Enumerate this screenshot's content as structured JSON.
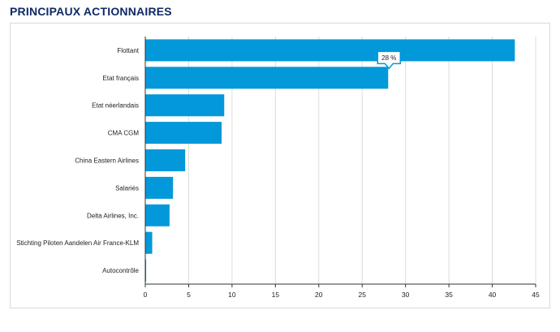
{
  "page": {
    "title": "PRINCIPAUX ACTIONNAIRES"
  },
  "colors": {
    "bar": "#0398d9",
    "title": "#0f2a66",
    "grid": "#dcdcdc",
    "axis": "#333333"
  },
  "chart_data": {
    "type": "bar",
    "orientation": "horizontal",
    "title": "",
    "xlabel": "",
    "ylabel": "",
    "categories": [
      "Flottant",
      "Etat français",
      "Etat néerlandais",
      "CMA CGM",
      "China Eastern Airlines",
      "Salariés",
      "Delta Airlines, Inc.",
      "Stichting Piloten Aandelen Air France-KLM",
      "Autocontrôle"
    ],
    "values": [
      42.6,
      28.0,
      9.1,
      8.8,
      4.6,
      3.2,
      2.8,
      0.8,
      0.1
    ],
    "xlim": [
      0,
      45
    ],
    "xticks": [
      0,
      5,
      10,
      15,
      20,
      25,
      30,
      35,
      40,
      45
    ],
    "grid": true,
    "tooltip": {
      "category": "Etat français",
      "text": "28 %"
    }
  }
}
